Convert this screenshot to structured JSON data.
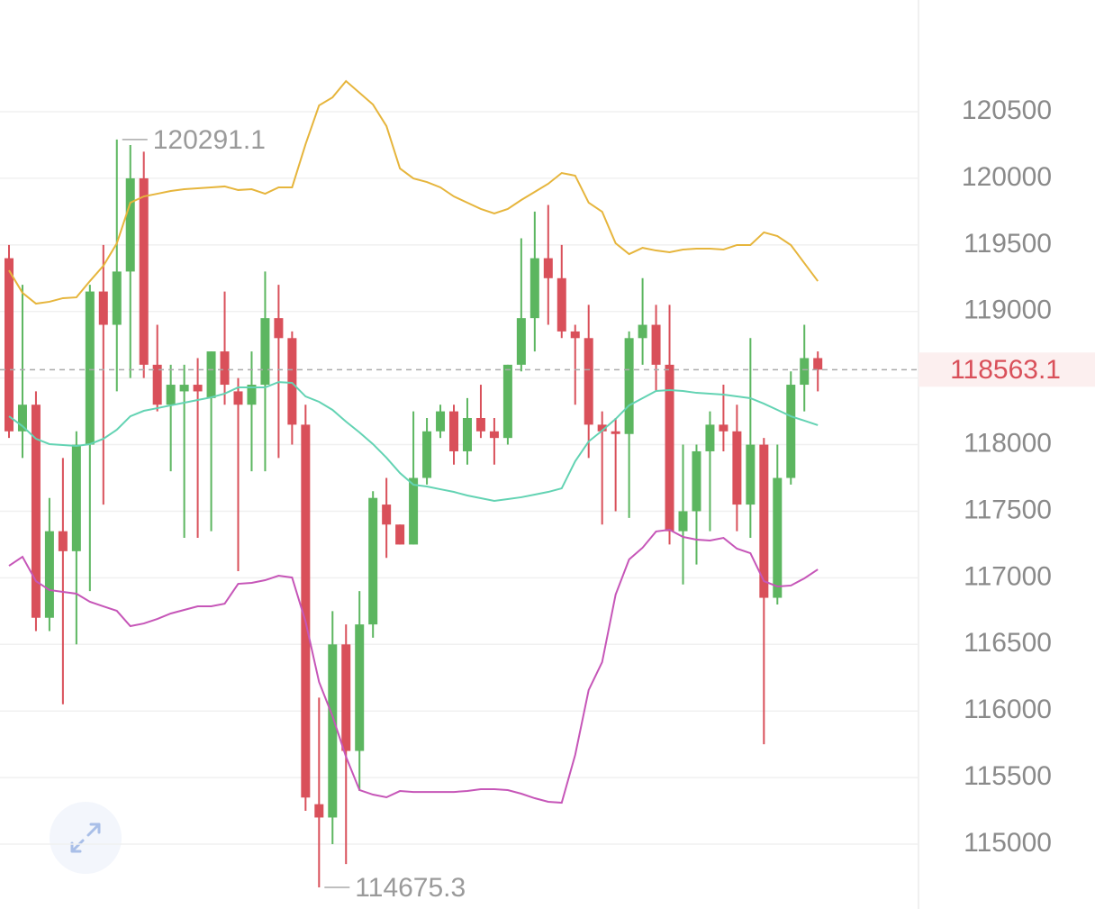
{
  "chart_data": {
    "type": "candlestick",
    "ylim": [
      114513,
      121339
    ],
    "yticks": [
      115000,
      115500,
      116000,
      116500,
      117000,
      117500,
      118000,
      118500,
      119000,
      119500,
      120000,
      120500
    ],
    "grid": true,
    "up_color": "#5cb660",
    "down_color": "#d9505a",
    "open": [
      119400,
      118100,
      118300,
      116700,
      117350,
      117200,
      118000,
      119150,
      118900,
      119300,
      120000,
      118600,
      118300,
      118400,
      118450,
      118350,
      118700,
      118400,
      118300,
      118450,
      118950,
      118800,
      118150,
      115300,
      115200,
      116500,
      115700,
      116650,
      117550,
      117400,
      117250,
      117750,
      118100,
      118250,
      117950,
      118200,
      118100,
      118050,
      118600,
      118950,
      119400,
      119250,
      118850,
      118800,
      118150,
      118100,
      118080,
      118800,
      118900,
      118600,
      117350,
      117500,
      117950,
      118150,
      118100,
      117550,
      118000,
      116850,
      117750,
      118450,
      118650
    ],
    "high": [
      119500,
      119200,
      118400,
      117600,
      117900,
      118100,
      119200,
      119500,
      120291.1,
      120250,
      120200,
      118900,
      118600,
      118600,
      118650,
      118700,
      119150,
      118500,
      118700,
      119300,
      119200,
      118850,
      118300,
      116100,
      116750,
      116650,
      116900,
      117650,
      117750,
      117400,
      118250,
      118200,
      118300,
      118300,
      118350,
      118450,
      118200,
      118600,
      119550,
      119750,
      119800,
      119500,
      118900,
      119050,
      118250,
      118200,
      118850,
      119250,
      119050,
      119050,
      118000,
      118000,
      118250,
      118450,
      118300,
      118800,
      118050,
      118000,
      118550,
      118900,
      118700
    ],
    "low": [
      118050,
      117900,
      116600,
      116600,
      116050,
      116500,
      116900,
      117550,
      118400,
      118500,
      118500,
      118250,
      117800,
      117300,
      117300,
      117350,
      118300,
      117050,
      117800,
      117800,
      117900,
      118000,
      115250,
      114675.3,
      115000,
      114850,
      115400,
      116550,
      117150,
      117250,
      117250,
      117700,
      118050,
      117850,
      117850,
      118050,
      117850,
      118000,
      118550,
      118700,
      118900,
      118800,
      118300,
      117900,
      117400,
      117500,
      117450,
      118600,
      118400,
      117250,
      116950,
      117100,
      117350,
      117950,
      117350,
      117300,
      115750,
      116800,
      117700,
      118250,
      118400
    ],
    "close": [
      118100,
      118300,
      116700,
      117350,
      117200,
      118000,
      119150,
      118900,
      119300,
      120000,
      118600,
      118300,
      118450,
      118450,
      118400,
      118700,
      118450,
      118300,
      118450,
      118950,
      118800,
      118150,
      115350,
      115200,
      116500,
      115700,
      116650,
      117600,
      117400,
      117250,
      117750,
      118100,
      118250,
      117950,
      118200,
      118100,
      118050,
      118600,
      118950,
      119400,
      119250,
      118850,
      118800,
      118150,
      118100,
      118080,
      118800,
      118900,
      118600,
      117350,
      117500,
      117950,
      118150,
      118100,
      117550,
      118000,
      116850,
      117750,
      118450,
      118650,
      118563.1
    ],
    "bands": [
      {
        "color": "#e6b53c",
        "values": [
          119309,
          119140,
          119059,
          119073,
          119100,
          119106,
          119228,
          119343,
          119512,
          119817,
          119864,
          119884,
          119905,
          119918,
          119925,
          119932,
          119939,
          119912,
          119918,
          119884,
          119932,
          119932,
          120256,
          120547,
          120608,
          120730,
          120642,
          120554,
          120392,
          120074,
          119999,
          119972,
          119932,
          119864,
          119817,
          119770,
          119736,
          119770,
          119837,
          119898,
          119959,
          120040,
          120020,
          119817,
          119749,
          119512,
          119431,
          119478,
          119458,
          119445,
          119465,
          119472,
          119472,
          119465,
          119499,
          119499,
          119594,
          119566,
          119499,
          119363,
          119228
        ]
      },
      {
        "color": "#63d3b3",
        "values": [
          118213,
          118139,
          118044,
          118004,
          117997,
          117990,
          118004,
          118044,
          118112,
          118213,
          118254,
          118274,
          118295,
          118315,
          118335,
          118355,
          118383,
          118430,
          118430,
          118430,
          118470,
          118464,
          118362,
          118322,
          118261,
          118173,
          118092,
          118004,
          117902,
          117787,
          117699,
          117686,
          117665,
          117645,
          117618,
          117598,
          117578,
          117591,
          117605,
          117625,
          117645,
          117672,
          117875,
          118024,
          118105,
          118193,
          118295,
          118349,
          118403,
          118410,
          118403,
          118389,
          118383,
          118376,
          118362,
          118349,
          118308,
          118261,
          118213,
          118180,
          118146
        ]
      },
      {
        "color": "#c656b8",
        "values": [
          117090,
          117158,
          116975,
          116908,
          116894,
          116881,
          116820,
          116786,
          116752,
          116637,
          116657,
          116691,
          116732,
          116759,
          116786,
          116786,
          116806,
          116955,
          116962,
          116982,
          117016,
          117002,
          116671,
          116218,
          115961,
          115656,
          115406,
          115372,
          115352,
          115399,
          115392,
          115392,
          115392,
          115392,
          115399,
          115413,
          115413,
          115406,
          115379,
          115345,
          115318,
          115311,
          115670,
          116157,
          116367,
          116874,
          117138,
          117226,
          117348,
          117361,
          117307,
          117287,
          117280,
          117300,
          117219,
          117185,
          116975,
          116935,
          116942,
          116996,
          117063
        ]
      }
    ]
  }
}
